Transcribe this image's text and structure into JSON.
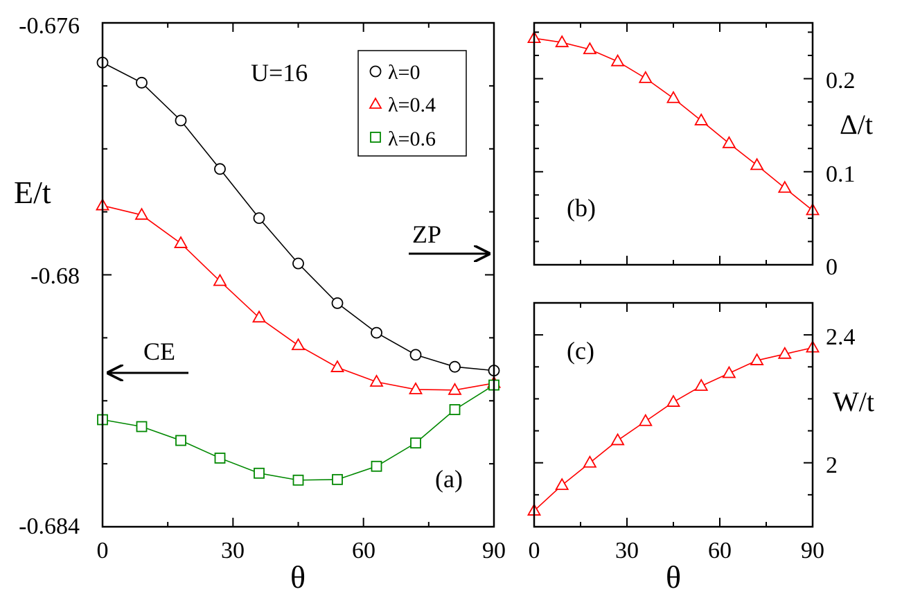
{
  "chart_data": [
    {
      "panel": "(a)",
      "type": "line",
      "title": "",
      "xlabel": "θ",
      "ylabel": "E/t",
      "xlim": [
        0,
        90
      ],
      "ylim": [
        -0.684,
        -0.676
      ],
      "xticks": [
        "0",
        "30",
        "60",
        "90"
      ],
      "yticks": [
        "-0.676",
        "-0.68",
        "-0.684"
      ],
      "x": [
        0,
        9,
        18,
        27,
        36,
        45,
        54,
        63,
        72,
        81,
        90
      ],
      "series": [
        {
          "name": "λ=0",
          "marker": "circle",
          "color": "#000000",
          "values": [
            -0.67663,
            -0.67695,
            -0.67755,
            -0.67832,
            -0.6791,
            -0.67982,
            -0.68045,
            -0.68092,
            -0.68127,
            -0.68146,
            -0.68152
          ]
        },
        {
          "name": "λ=0.4",
          "marker": "triangle",
          "color": "#ff0000",
          "values": [
            -0.6789,
            -0.67905,
            -0.6795,
            -0.6801,
            -0.68068,
            -0.68112,
            -0.68147,
            -0.6817,
            -0.68182,
            -0.68183,
            -0.68172
          ]
        },
        {
          "name": "λ=0.6",
          "marker": "square",
          "color": "#008800",
          "values": [
            -0.6823,
            -0.68241,
            -0.68263,
            -0.68291,
            -0.68315,
            -0.68326,
            -0.68325,
            -0.68304,
            -0.68267,
            -0.68214,
            -0.68175
          ]
        }
      ],
      "annotations": {
        "u": "U=16",
        "ce": "CE",
        "zp": "ZP"
      }
    },
    {
      "panel": "(b)",
      "type": "line",
      "xlabel": "",
      "ylabel": "Δ/t",
      "xlim": [
        0,
        90
      ],
      "ylim": [
        0,
        0.26
      ],
      "yticks": [
        "0",
        "0.1",
        "0.2"
      ],
      "x": [
        0,
        9,
        18,
        27,
        36,
        45,
        54,
        63,
        72,
        81,
        90
      ],
      "series": [
        {
          "name": "λ=0.4",
          "marker": "triangle",
          "color": "#ff0000",
          "values": [
            0.2435,
            0.239,
            0.2315,
            0.2185,
            0.2005,
            0.179,
            0.155,
            0.1305,
            0.107,
            0.0825,
            0.0585
          ]
        }
      ]
    },
    {
      "panel": "(c)",
      "type": "line",
      "xlabel": "θ",
      "ylabel": "W/t",
      "xlim": [
        0,
        90
      ],
      "ylim": [
        1.8,
        2.5
      ],
      "xticks": [
        "0",
        "30",
        "60",
        "90"
      ],
      "yticks": [
        "2",
        "2.4"
      ],
      "x": [
        0,
        9,
        18,
        27,
        36,
        45,
        54,
        63,
        72,
        81,
        90
      ],
      "series": [
        {
          "name": "λ=0.4",
          "marker": "triangle",
          "color": "#ff0000",
          "values": [
            1.85,
            1.93,
            2.0,
            2.07,
            2.13,
            2.19,
            2.24,
            2.28,
            2.32,
            2.34,
            2.36
          ]
        }
      ]
    }
  ]
}
